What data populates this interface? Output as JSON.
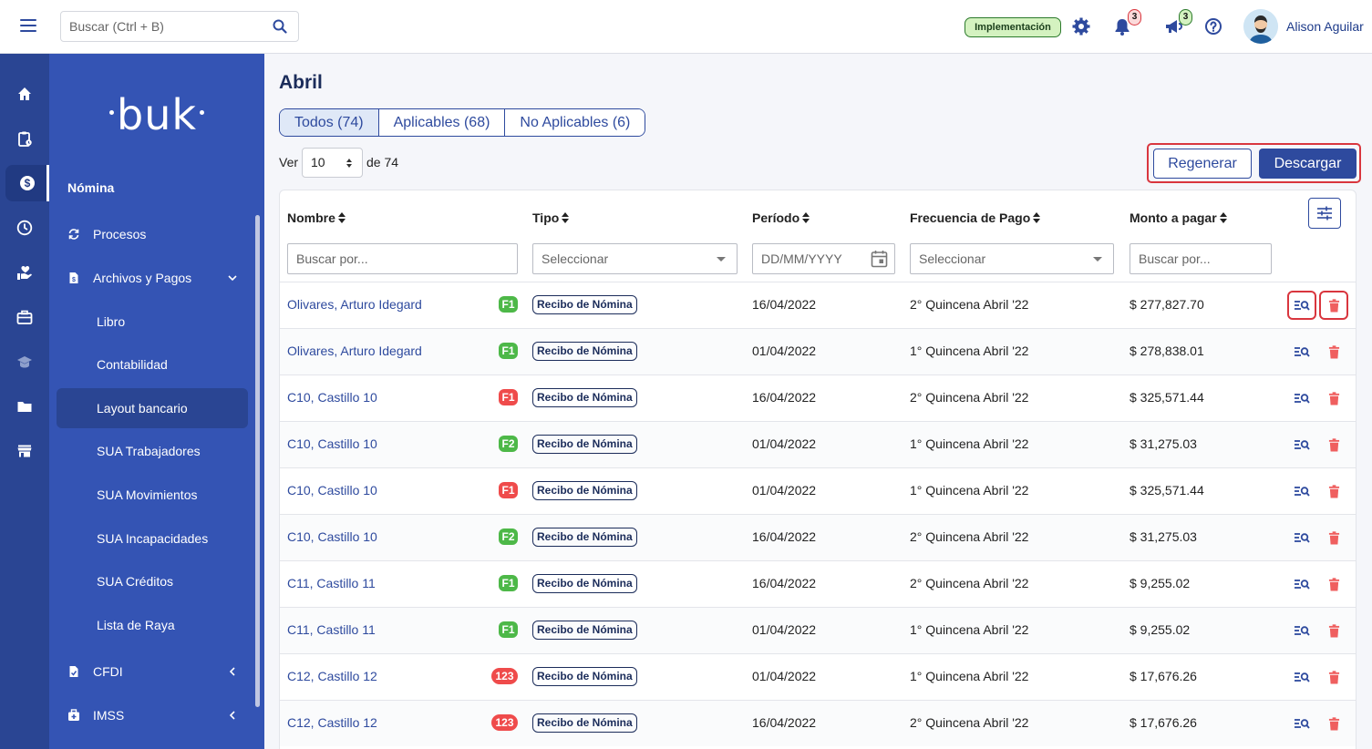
{
  "topbar": {
    "search_placeholder": "Buscar (Ctrl + B)",
    "env_badge": "Implementación",
    "notifications_count": "3",
    "messages_count": "3",
    "user_name": "Alison Aguilar"
  },
  "sidebar": {
    "logo": "buk",
    "section_title": "Nómina",
    "items": [
      {
        "label": "Procesos"
      },
      {
        "label": "Archivos y Pagos"
      },
      {
        "label": "Libro"
      },
      {
        "label": "Contabilidad"
      },
      {
        "label": "Layout bancario"
      },
      {
        "label": "SUA Trabajadores"
      },
      {
        "label": "SUA Movimientos"
      },
      {
        "label": "SUA Incapacidades"
      },
      {
        "label": "SUA Créditos"
      },
      {
        "label": "Lista de Raya"
      },
      {
        "label": "CFDI"
      },
      {
        "label": "IMSS"
      }
    ]
  },
  "main": {
    "title": "Abril",
    "tabs": [
      {
        "label": "Todos (74)"
      },
      {
        "label": "Aplicables (68)"
      },
      {
        "label": "No Aplicables (6)"
      }
    ],
    "ver_label": "Ver",
    "per_page": "10",
    "of_total": "de 74",
    "regenerate_label": "Regenerar",
    "download_label": "Descargar"
  },
  "table": {
    "headers": [
      "Nombre",
      "Tipo",
      "Período",
      "Frecuencia de Pago",
      "Monto a pagar"
    ],
    "filters": {
      "nombre_placeholder": "Buscar por...",
      "tipo_placeholder": "Seleccionar",
      "periodo_placeholder": "DD/MM/YYYY",
      "frecuencia_placeholder": "Seleccionar",
      "monto_placeholder": "Buscar por..."
    },
    "rows": [
      {
        "nombre": "Olivares, Arturo Idegard",
        "badge": "F1",
        "tipo": "Recibo de Nómina",
        "periodo": "16/04/2022",
        "frecuencia": "2° Quincena Abril '22",
        "monto": "$ 277,827.70"
      },
      {
        "nombre": "Olivares, Arturo Idegard",
        "badge": "F1",
        "tipo": "Recibo de Nómina",
        "periodo": "01/04/2022",
        "frecuencia": "1° Quincena Abril '22",
        "monto": "$ 278,838.01"
      },
      {
        "nombre": "C10, Castillo 10",
        "badge": "F1",
        "tipo": "Recibo de Nómina",
        "periodo": "16/04/2022",
        "frecuencia": "2° Quincena Abril '22",
        "monto": "$ 325,571.44"
      },
      {
        "nombre": "C10, Castillo 10",
        "badge": "F2",
        "tipo": "Recibo de Nómina",
        "periodo": "01/04/2022",
        "frecuencia": "1° Quincena Abril '22",
        "monto": "$ 31,275.03"
      },
      {
        "nombre": "C10, Castillo 10",
        "badge": "F1",
        "tipo": "Recibo de Nómina",
        "periodo": "01/04/2022",
        "frecuencia": "1° Quincena Abril '22",
        "monto": "$ 325,571.44"
      },
      {
        "nombre": "C10, Castillo 10",
        "badge": "F2",
        "tipo": "Recibo de Nómina",
        "periodo": "16/04/2022",
        "frecuencia": "2° Quincena Abril '22",
        "monto": "$ 31,275.03"
      },
      {
        "nombre": "C11, Castillo 11",
        "badge": "F1",
        "tipo": "Recibo de Nómina",
        "periodo": "16/04/2022",
        "frecuencia": "2° Quincena Abril '22",
        "monto": "$ 9,255.02"
      },
      {
        "nombre": "C11, Castillo 11",
        "badge": "F1",
        "tipo": "Recibo de Nómina",
        "periodo": "01/04/2022",
        "frecuencia": "1° Quincena Abril '22",
        "monto": "$ 9,255.02"
      },
      {
        "nombre": "C12, Castillo 12",
        "badge": "123",
        "tipo": "Recibo de Nómina",
        "periodo": "01/04/2022",
        "frecuencia": "1° Quincena Abril '22",
        "monto": "$ 17,676.26"
      },
      {
        "nombre": "C12, Castillo 12",
        "badge": "123",
        "tipo": "Recibo de Nómina",
        "periodo": "16/04/2022",
        "frecuencia": "2° Quincena Abril '22",
        "monto": "$ 17,676.26"
      }
    ]
  },
  "colors": {
    "primary": "#2e4a9e",
    "sidebar": "#3454b4",
    "rail": "#2a4593",
    "highlight": "#d9363e",
    "badge_green": "#4db848",
    "badge_red": "#ef4b4b"
  },
  "icons": [
    "menu-icon",
    "search-icon",
    "gear-icon",
    "bell-icon",
    "megaphone-icon",
    "help-icon",
    "home-icon",
    "clipboard-icon",
    "dollar-icon",
    "clock-icon",
    "hand-heart-icon",
    "briefcase-icon",
    "graduation-cap-icon",
    "folder-icon",
    "store-icon",
    "refresh-icon",
    "file-icon",
    "chevron-down-icon",
    "chevron-left-icon",
    "sort-icon",
    "calendar-icon",
    "sliders-icon",
    "view-detail-icon",
    "trash-icon"
  ]
}
